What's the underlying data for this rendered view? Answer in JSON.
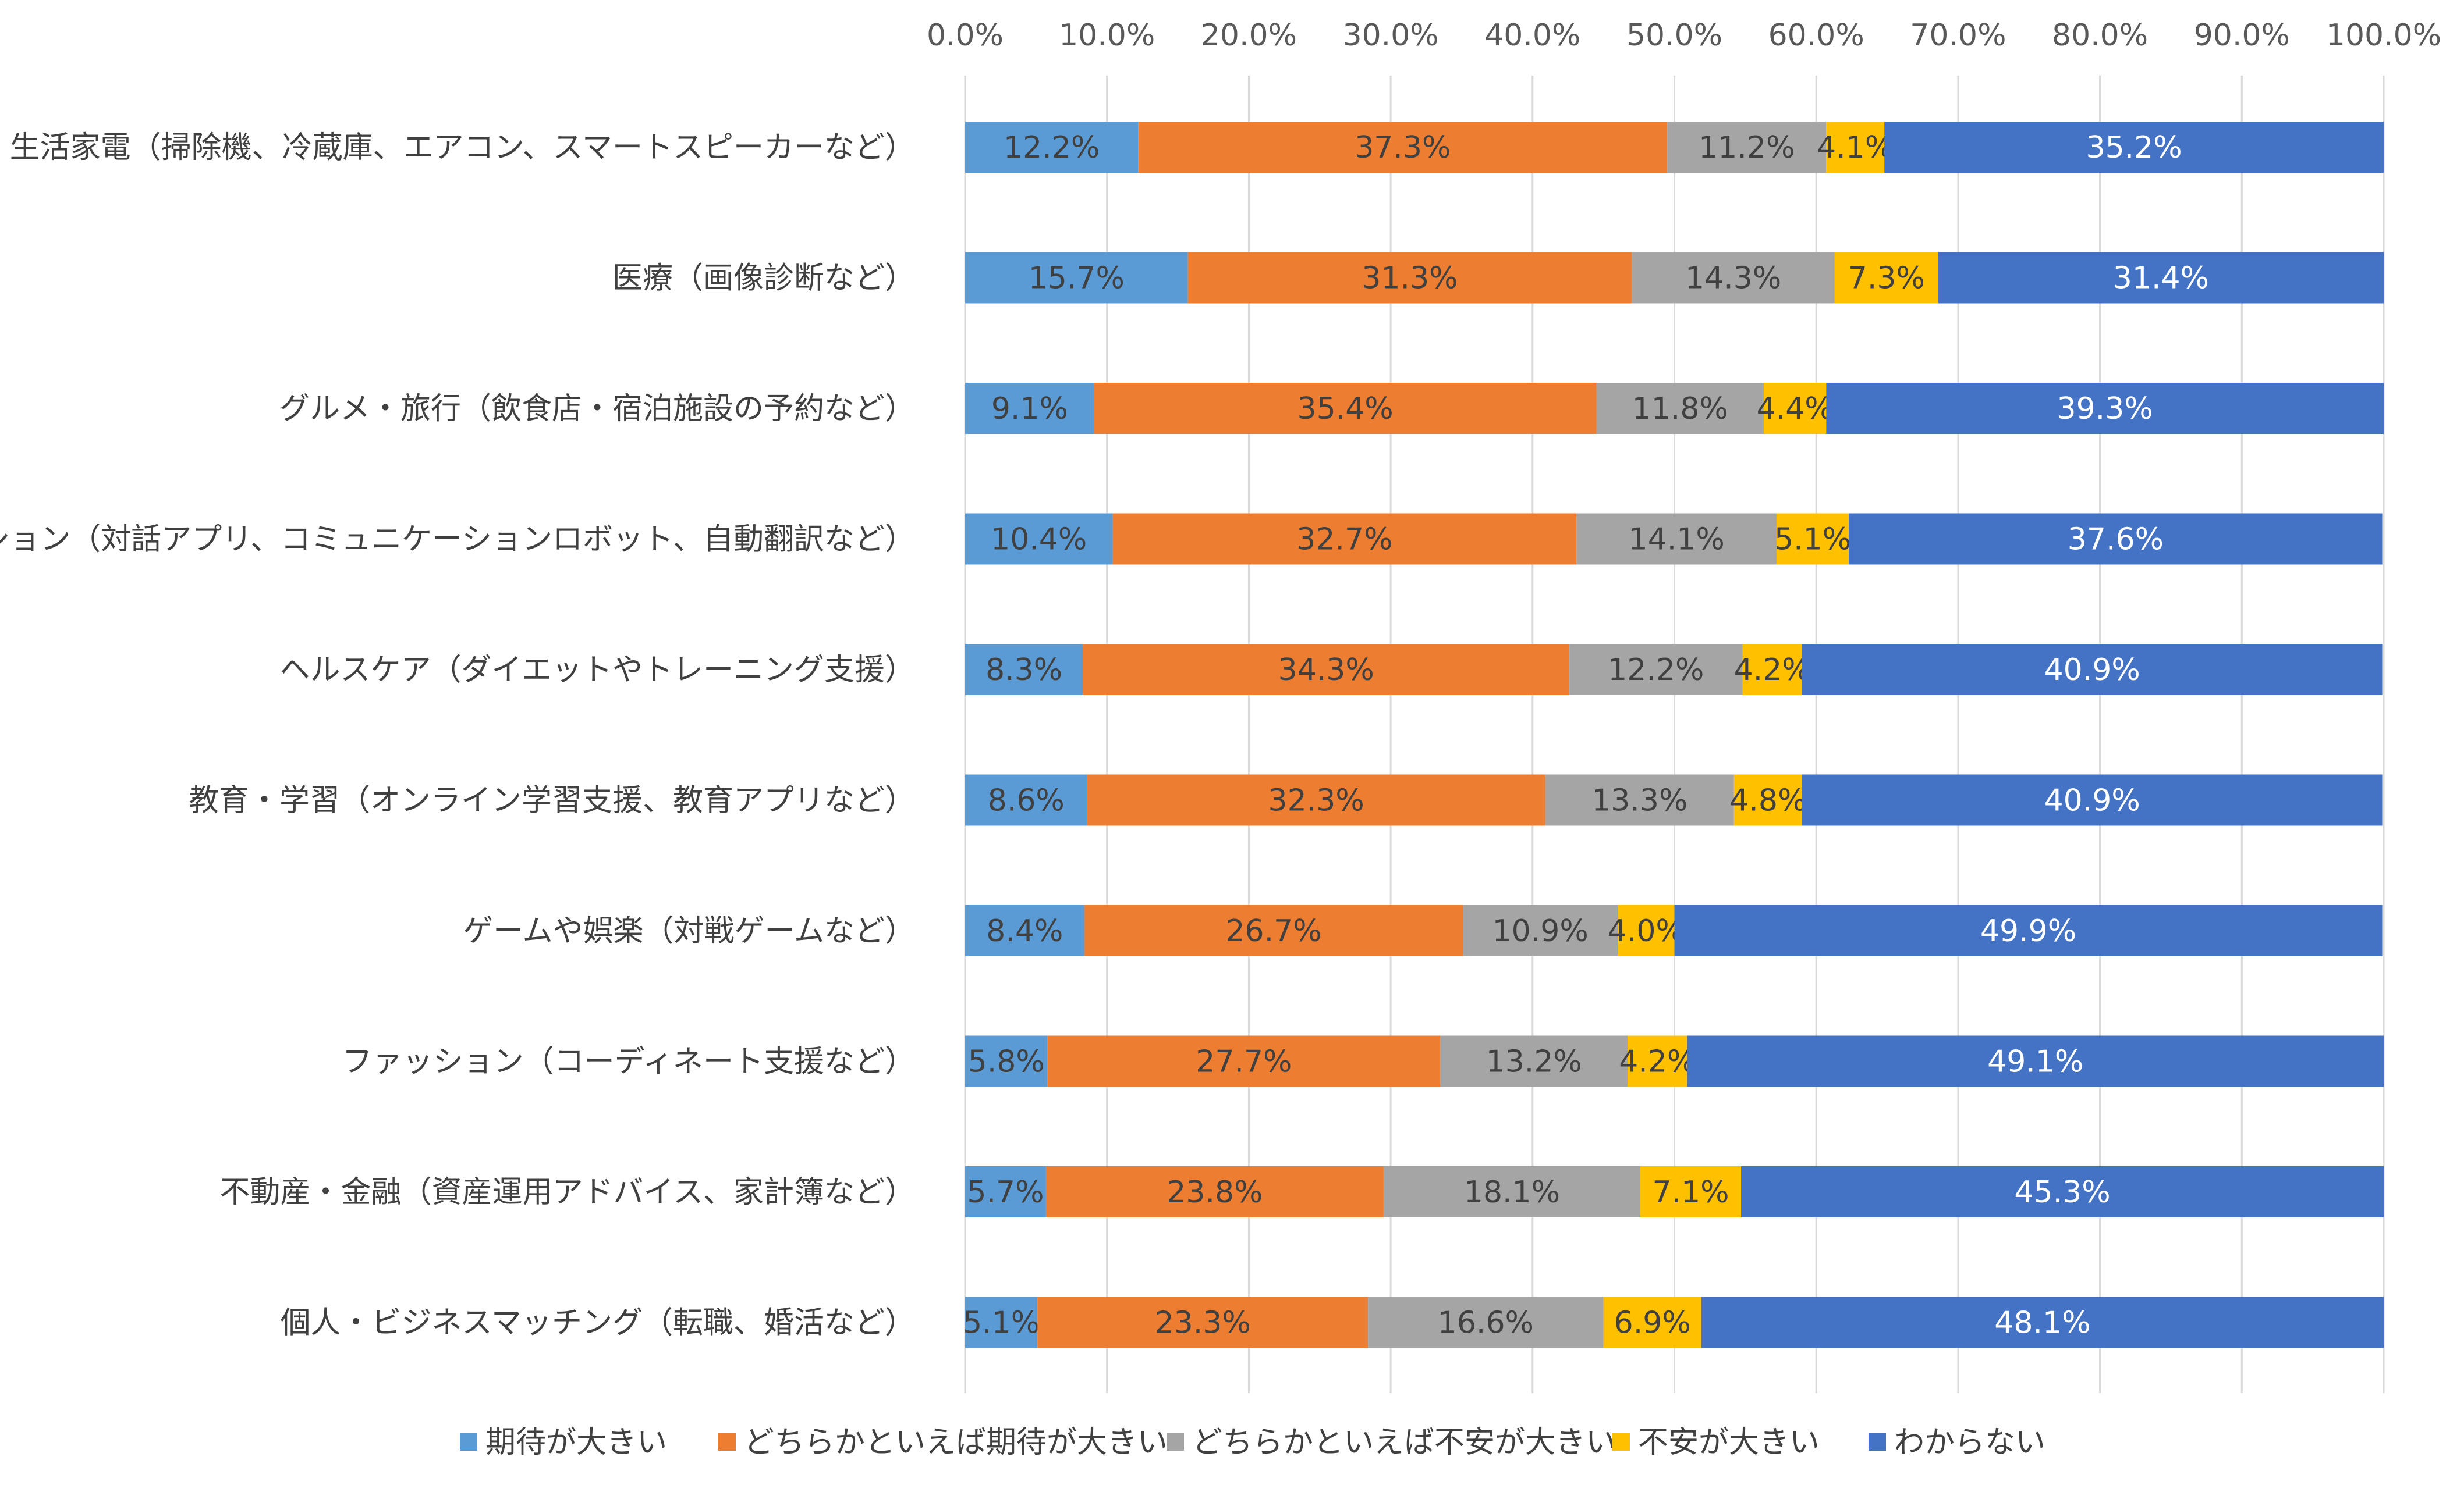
{
  "chart_data": {
    "type": "bar",
    "orientation": "horizontal",
    "stacked": true,
    "xlim": [
      0,
      100
    ],
    "x_ticks": [
      "0.0%",
      "10.0%",
      "20.0%",
      "30.0%",
      "40.0%",
      "50.0%",
      "60.0%",
      "70.0%",
      "80.0%",
      "90.0%",
      "100.0%"
    ],
    "x_axis_position": "top",
    "grid": "vertical",
    "legend_position": "bottom",
    "categories": [
      "生活家電（掃除機、冷蔵庫、エアコン、スマートスピーカーなど）",
      "医療（画像診断など）",
      "グルメ・旅行（飲食店・宿泊施設の予約など）",
      "コミュニケーション（対話アプリ、コミュニケーションロボット、自動翻訳など）",
      "ヘルスケア（ダイエットやトレーニング支援）",
      "教育・学習（オンライン学習支援、教育アプリなど）",
      "ゲームや娯楽（対戦ゲームなど）",
      "ファッション（コーディネート支援など）",
      "不動産・金融（資産運用アドバイス、家計簿など）",
      "個人・ビジネスマッチング（転職、婚活など）"
    ],
    "series": [
      {
        "name": "期待が大きい",
        "color": "#5B9BD5",
        "label_color": "#404040",
        "values": [
          12.2,
          15.7,
          9.1,
          10.4,
          8.3,
          8.6,
          8.4,
          5.8,
          5.7,
          5.1
        ]
      },
      {
        "name": "どちらかといえば期待が大きい",
        "color": "#ED7D31",
        "label_color": "#404040",
        "values": [
          37.3,
          31.3,
          35.4,
          32.7,
          34.3,
          32.3,
          26.7,
          27.7,
          23.8,
          23.3
        ]
      },
      {
        "name": "どちらかといえば不安が大きい",
        "color": "#A5A5A5",
        "label_color": "#404040",
        "values": [
          11.2,
          14.3,
          11.8,
          14.1,
          12.2,
          13.3,
          10.9,
          13.2,
          18.1,
          16.6
        ]
      },
      {
        "name": "不安が大きい",
        "color": "#FFC000",
        "label_color": "#404040",
        "values": [
          4.1,
          7.3,
          4.4,
          5.1,
          4.2,
          4.8,
          4.0,
          4.2,
          7.1,
          6.9
        ]
      },
      {
        "name": "わからない",
        "color": "#4472C4",
        "label_color": "#FFFFFF",
        "values": [
          35.2,
          31.4,
          39.3,
          37.6,
          40.9,
          40.9,
          49.9,
          49.1,
          45.3,
          48.1
        ]
      }
    ]
  }
}
